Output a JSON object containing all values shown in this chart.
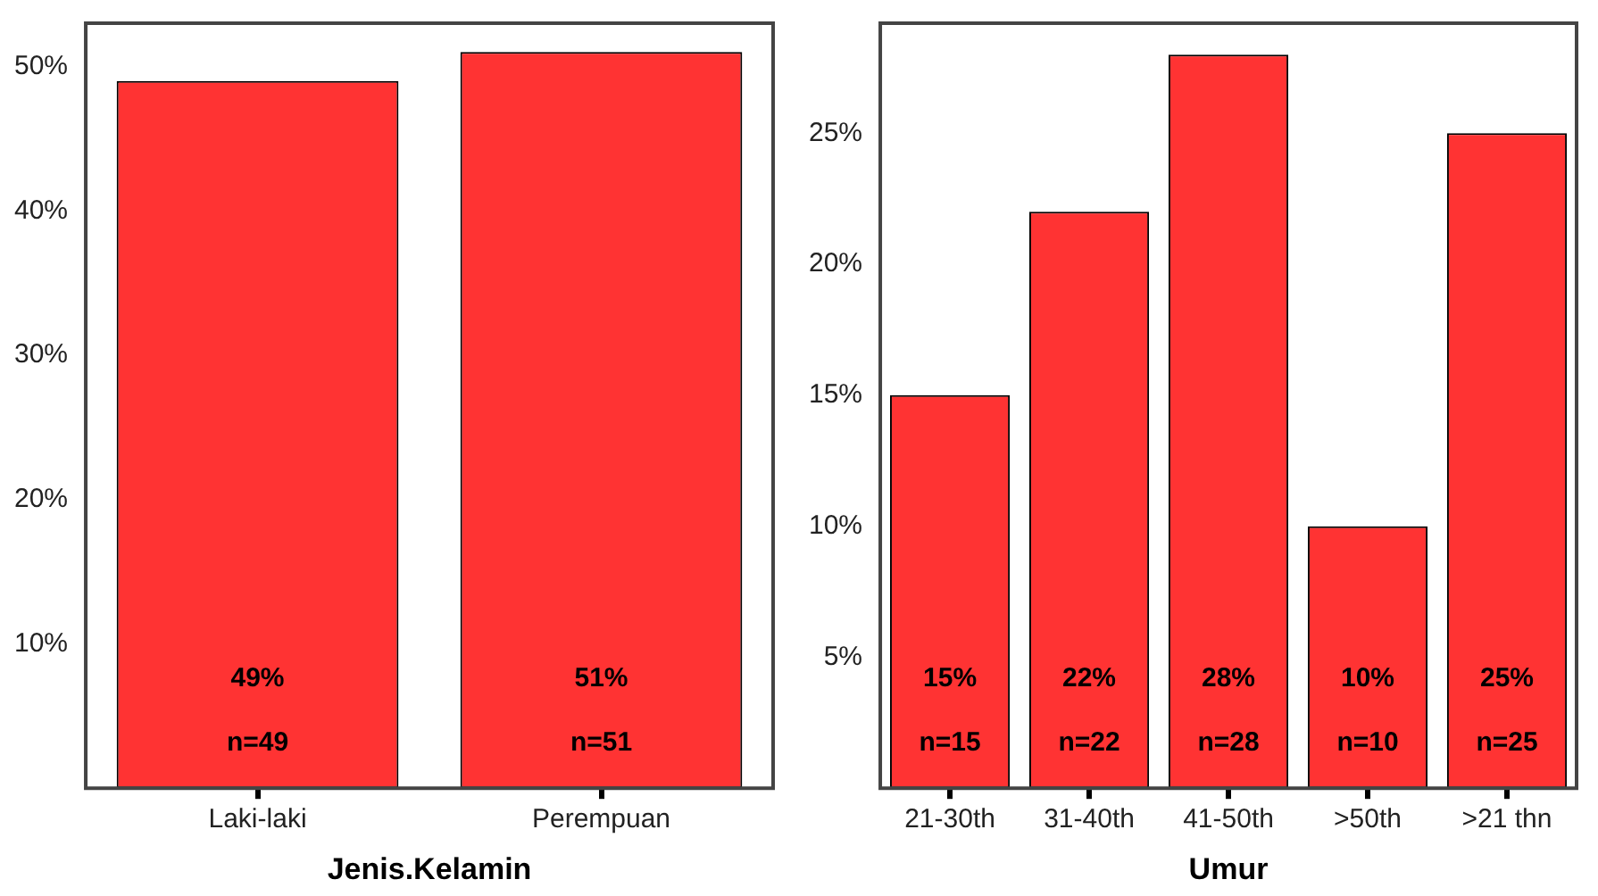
{
  "chart_data": [
    {
      "type": "bar",
      "xlabel": "Jenis.Kelamin",
      "categories": [
        "Laki-laki",
        "Perempuan"
      ],
      "values": [
        49,
        51
      ],
      "color": "#ff3333",
      "value_labels": [
        "49%\nn=49",
        "51%\nn=51"
      ],
      "ylim": [
        0,
        53
      ],
      "yticks": [
        {
          "value": 10,
          "label": "10%"
        },
        {
          "value": 20,
          "label": "20%"
        },
        {
          "value": 30,
          "label": "30%"
        },
        {
          "value": 40,
          "label": "40%"
        },
        {
          "value": 50,
          "label": "50%"
        }
      ],
      "grid": false,
      "legend": false
    },
    {
      "type": "bar",
      "xlabel": "Umur",
      "categories": [
        "21-30th",
        "31-40th",
        "41-50th",
        ">50th",
        ">21 thn"
      ],
      "values": [
        15,
        22,
        28,
        10,
        25
      ],
      "color": "#ff3333",
      "value_labels": [
        "15%\nn=15",
        "22%\nn=22",
        "28%\nn=28",
        "10%\nn=10",
        "25%\nn=25"
      ],
      "ylim": [
        0,
        29.2
      ],
      "yticks": [
        {
          "value": 5,
          "label": "5%"
        },
        {
          "value": 10,
          "label": "10%"
        },
        {
          "value": 15,
          "label": "15%"
        },
        {
          "value": 20,
          "label": "20%"
        },
        {
          "value": 25,
          "label": "25%"
        }
      ],
      "grid": false,
      "legend": false
    }
  ]
}
